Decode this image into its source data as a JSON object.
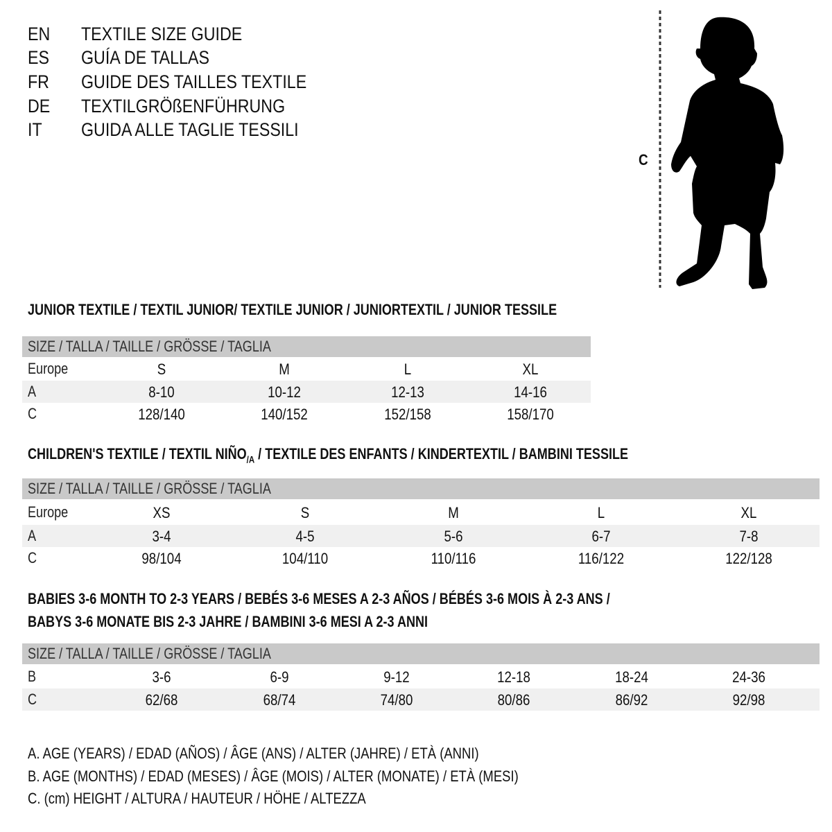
{
  "titles": [
    {
      "code": "EN",
      "text": "TEXTILE SIZE GUIDE"
    },
    {
      "code": "ES",
      "text": "GUÍA DE TALLAS"
    },
    {
      "code": "FR",
      "text": "GUIDE DES TAILLES TEXTILE"
    },
    {
      "code": "DE",
      "text": "TEXTILGRÖßENFÜHRUNG"
    },
    {
      "code": "IT",
      "text": "GUIDA ALLE TAGLIE TESSILI"
    }
  ],
  "figure": {
    "label": "C",
    "icon": "child-silhouette"
  },
  "size_header": "SIZE / TALLA / TAILLE / GRÖSSE / TAGLIA",
  "junior": {
    "heading": "JUNIOR TEXTILE / TEXTIL JUNIOR/ TEXTILE JUNIOR / JUNIORTEXTIL / JUNIOR TESSILE",
    "rows": [
      {
        "label": "Europe",
        "values": [
          "S",
          "M",
          "L",
          "XL"
        ]
      },
      {
        "label": "A",
        "values": [
          "8-10",
          "10-12",
          "12-13",
          "14-16"
        ]
      },
      {
        "label": "C",
        "values": [
          "128/140",
          "140/152",
          "152/158",
          "158/170"
        ]
      }
    ]
  },
  "children": {
    "heading_pre": "CHILDREN'S TEXTILE / TEXTIL NIÑO",
    "heading_sub": "/A",
    "heading_post": " / TEXTILE DES ENFANTS / KINDERTEXTIL / BAMBINI TESSILE",
    "rows": [
      {
        "label": "Europe",
        "values": [
          "XS",
          "S",
          "M",
          "L",
          "XL"
        ]
      },
      {
        "label": "A",
        "values": [
          "3-4",
          "4-5",
          "5-6",
          "6-7",
          "7-8"
        ]
      },
      {
        "label": "C",
        "values": [
          "98/104",
          "104/110",
          "110/116",
          "116/122",
          "122/128"
        ]
      }
    ]
  },
  "babies": {
    "heading_line1": "BABIES 3-6 MONTH TO 2-3 YEARS / BEBÉS 3-6 MESES A 2-3 AÑOS / BÉBÉS 3-6 MOIS À 2-3 ANS /",
    "heading_line2": "BABYS 3-6 MONATE BIS 2-3 JAHRE / BAMBINI 3-6 MESI A 2-3 ANNI",
    "rows": [
      {
        "label": "B",
        "values": [
          "3-6",
          "6-9",
          "9-12",
          "12-18",
          "18-24",
          "24-36"
        ]
      },
      {
        "label": "C",
        "values": [
          "62/68",
          "68/74",
          "74/80",
          "80/86",
          "86/92",
          "92/98"
        ]
      }
    ]
  },
  "legend": [
    "A. AGE (YEARS) / EDAD (AÑOS) / ÂGE (ANS) / ALTER (JAHRE) / ETÀ (ANNI)",
    "B. AGE (MONTHS) / EDAD (MESES) / ÂGE (MOIS) / ALTER (MONATE) / ETÀ (MESI)",
    "C. (cm) HEIGHT / ALTURA / HAUTEUR / HÖHE / ALTEZZA"
  ],
  "colors": {
    "header_band": "#c9c9c9",
    "alt_row": "#f0f0f0",
    "text": "#111111"
  }
}
